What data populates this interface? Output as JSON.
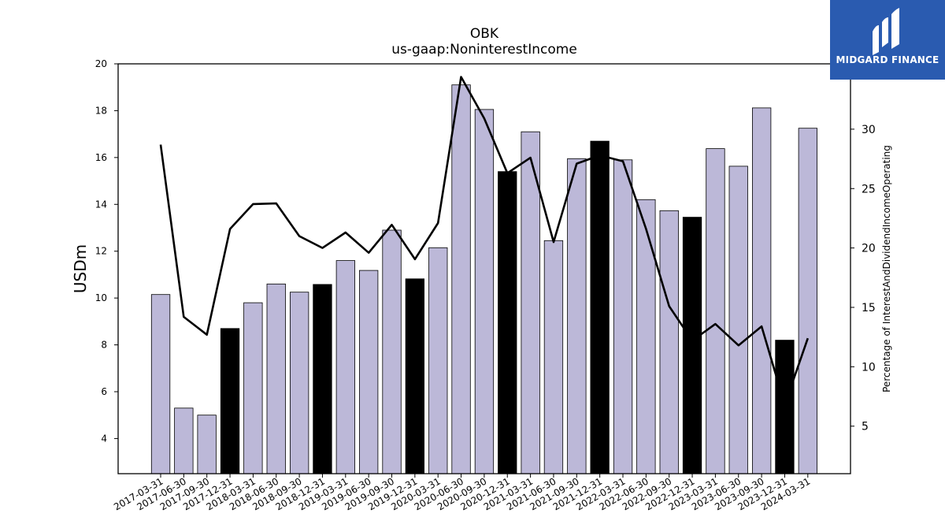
{
  "brand": {
    "name": "MIDGARD FINANCE",
    "icon": "midgard-logo-icon",
    "background": "#2a5bb0"
  },
  "chart_data": {
    "type": "bar",
    "title": "OBK",
    "subtitle": "us-gaap:NoninterestIncome",
    "ylabel": "USDm",
    "y2label": "Percentage of InterestAndDividendIncomeOperating",
    "ylim": [
      2.5,
      20
    ],
    "y2lim": [
      1.0,
      35.5
    ],
    "yticks": [
      4,
      6,
      8,
      10,
      12,
      14,
      16,
      18,
      20
    ],
    "y2ticks": [
      5,
      10,
      15,
      20,
      25,
      30
    ],
    "categories": [
      "2017-03-31",
      "2017-06-30",
      "2017-09-30",
      "2017-12-31",
      "2018-03-31",
      "2018-06-30",
      "2018-09-30",
      "2018-12-31",
      "2019-03-31",
      "2019-06-30",
      "2019-09-30",
      "2019-12-31",
      "2020-03-31",
      "2020-06-30",
      "2020-09-30",
      "2020-12-31",
      "2021-03-31",
      "2021-06-30",
      "2021-09-30",
      "2021-12-31",
      "2022-03-31",
      "2022-06-30",
      "2022-09-30",
      "2022-12-31",
      "2023-03-31",
      "2023-06-30",
      "2023-09-30",
      "2023-12-31",
      "2024-03-31"
    ],
    "series": [
      {
        "type": "bar",
        "axis": "left",
        "values": [
          10.15,
          5.3,
          5.0,
          8.7,
          9.8,
          10.6,
          10.25,
          10.58,
          11.6,
          11.18,
          12.9,
          10.82,
          12.15,
          19.1,
          18.05,
          15.4,
          17.1,
          12.45,
          15.95,
          16.7,
          15.9,
          14.2,
          13.73,
          13.45,
          16.38,
          15.63,
          18.12,
          8.2,
          17.25
        ],
        "q4_highlight": [
          false,
          false,
          false,
          true,
          false,
          false,
          false,
          true,
          false,
          false,
          false,
          true,
          false,
          false,
          false,
          true,
          false,
          false,
          false,
          true,
          false,
          false,
          false,
          true,
          false,
          false,
          false,
          true,
          false
        ],
        "color": "#bcb8d8",
        "highlight_color": "#000000"
      },
      {
        "type": "line",
        "axis": "right",
        "values": [
          28.7,
          14.2,
          12.7,
          21.6,
          23.7,
          23.75,
          21.0,
          20.0,
          21.3,
          19.6,
          21.95,
          19.05,
          22.1,
          34.4,
          30.9,
          26.3,
          27.6,
          20.5,
          27.1,
          27.8,
          27.3,
          21.6,
          15.1,
          12.2,
          13.6,
          11.8,
          13.4,
          6.8,
          12.4
        ],
        "color": "#000000"
      }
    ],
    "grid": false,
    "legend": "none"
  }
}
